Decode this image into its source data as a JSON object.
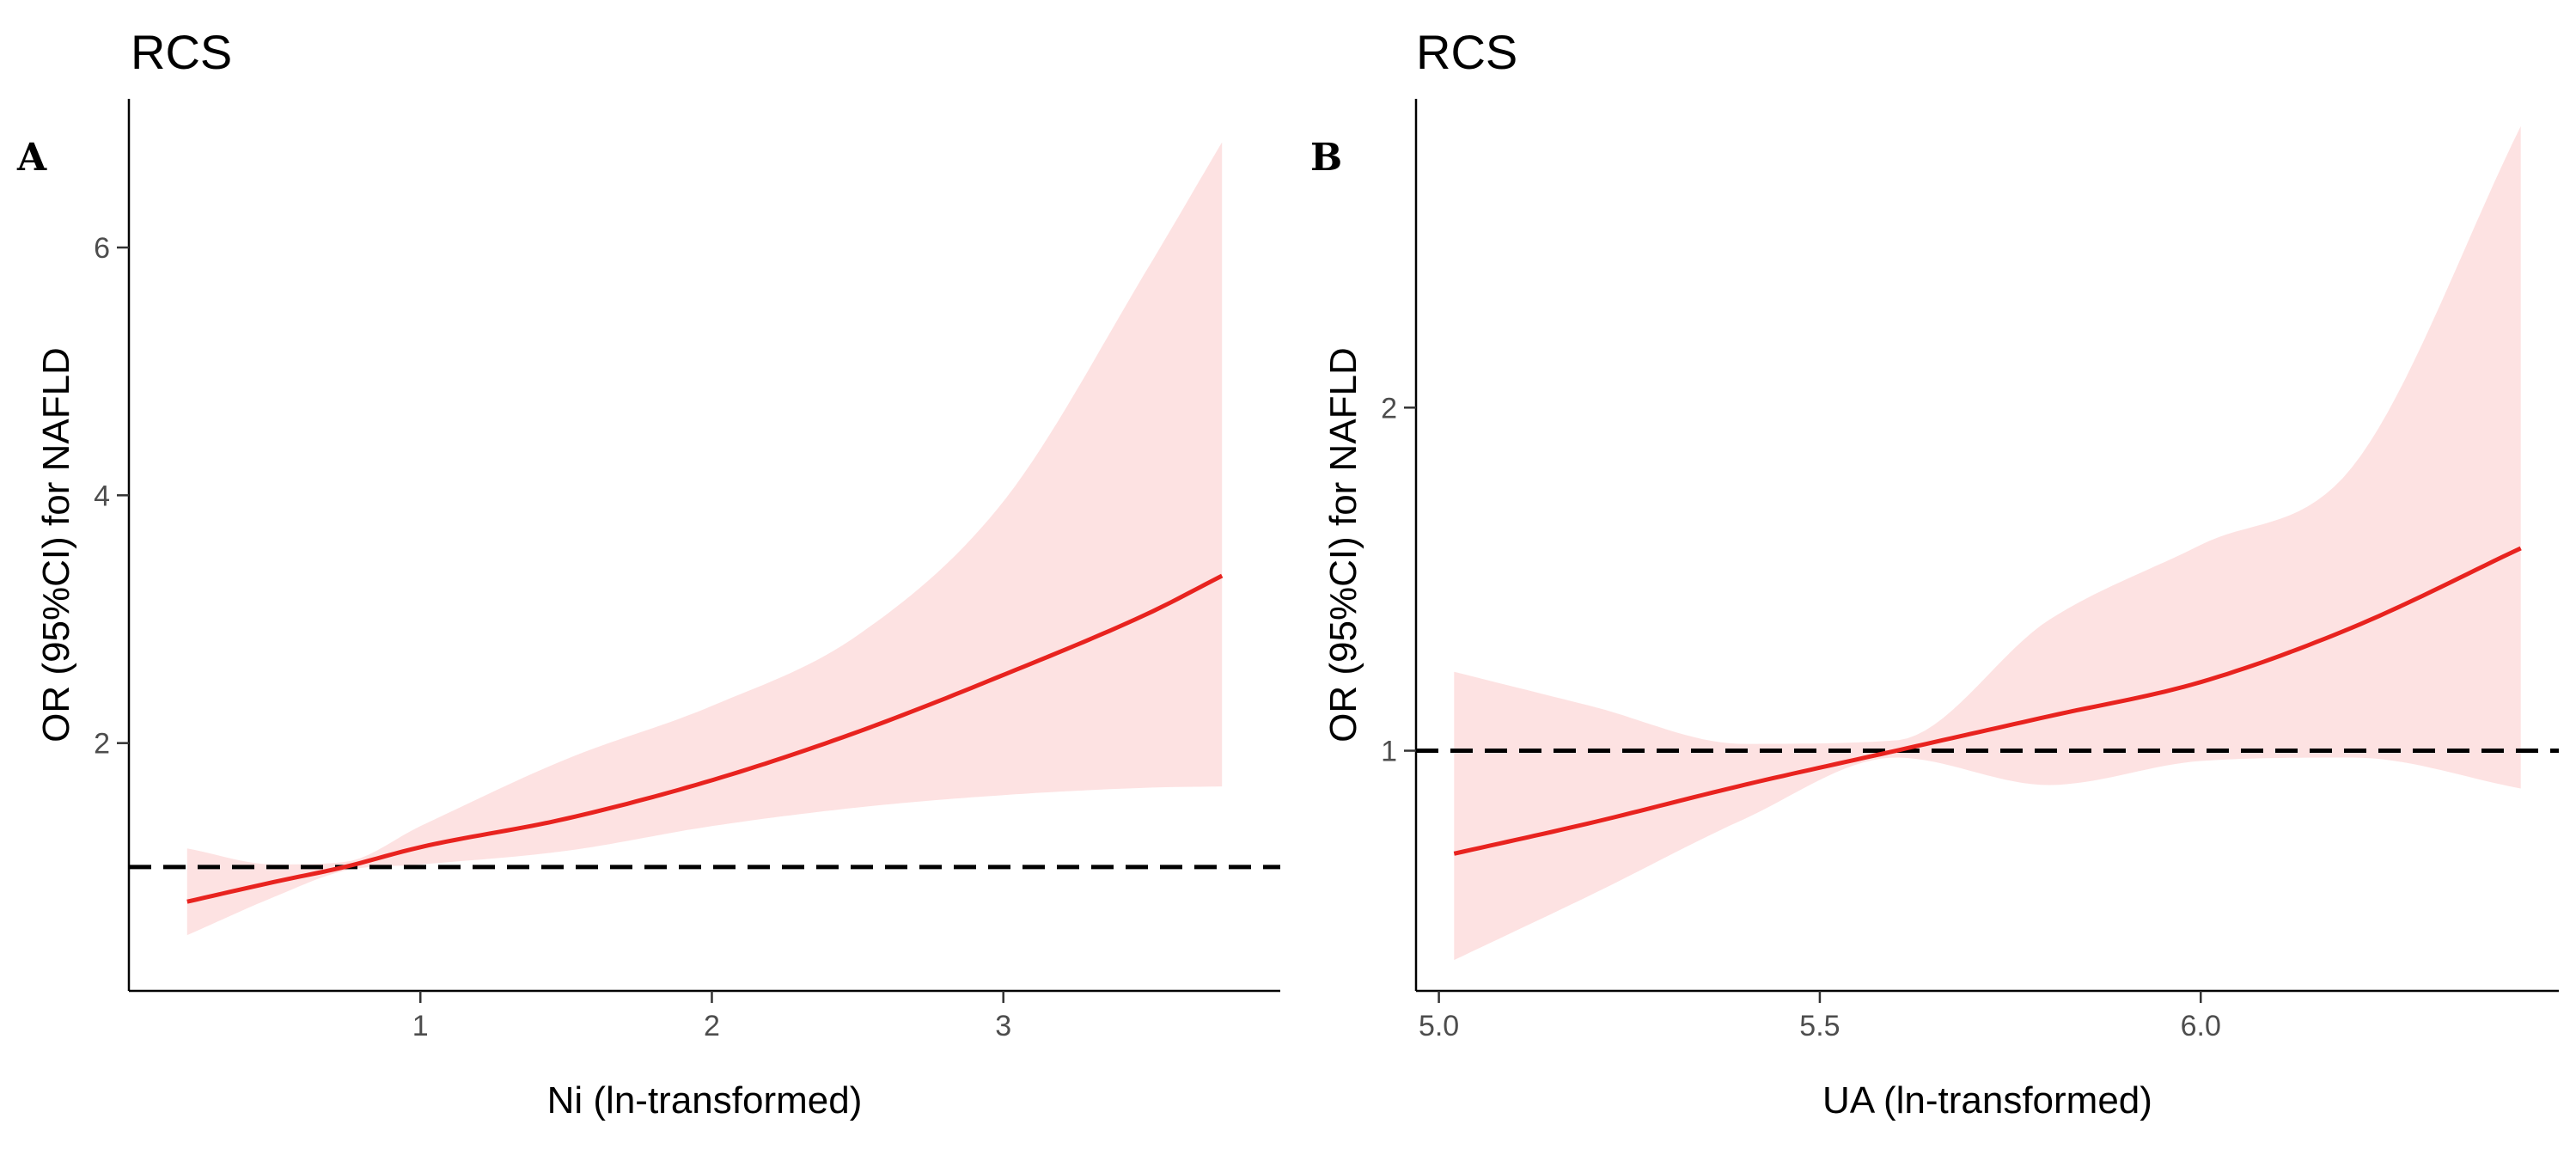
{
  "chart_data": [
    {
      "type": "line",
      "title": "RCS",
      "panel_label": "A",
      "xlabel": "Ni (ln-transformed)",
      "ylabel": "OR (95%CI) for NAFLD",
      "xlim": [
        0.0,
        3.95
      ],
      "ylim": [
        0.0,
        7.2
      ],
      "xticks": [
        1,
        2,
        3
      ],
      "xtick_labels": [
        "1",
        "2",
        "3"
      ],
      "yticks": [
        2,
        4,
        6
      ],
      "ytick_labels": [
        "2",
        "4",
        "6"
      ],
      "reference_line": 1.0,
      "grid": false,
      "legend": "none",
      "series": [
        {
          "x": [
            0.2,
            0.5,
            0.74,
            1.0,
            1.5,
            2.0,
            2.5,
            3.0,
            3.5,
            3.75
          ],
          "values": [
            0.72,
            0.88,
            1.0,
            1.16,
            1.39,
            1.7,
            2.09,
            2.55,
            3.05,
            3.35
          ],
          "lower": [
            0.45,
            0.76,
            0.97,
            1.02,
            1.13,
            1.33,
            1.48,
            1.58,
            1.64,
            1.65
          ],
          "upper": [
            1.15,
            1.02,
            1.04,
            1.33,
            1.87,
            2.3,
            2.87,
            3.95,
            5.85,
            6.85
          ]
        }
      ],
      "colors": {
        "line": "#e8231f",
        "band": "#fde2e2",
        "reference": "#000000"
      }
    },
    {
      "type": "line",
      "title": "RCS",
      "panel_label": "B",
      "xlabel": "UA (ln-transformed)",
      "ylabel": "OR (95%CI) for NAFLD",
      "xlim": [
        4.97,
        6.47
      ],
      "ylim": [
        0.3,
        2.9
      ],
      "xticks": [
        5.0,
        5.5,
        6.0
      ],
      "xtick_labels": [
        "5.0",
        "5.5",
        "6.0"
      ],
      "yticks": [
        1,
        2
      ],
      "ytick_labels": [
        "1",
        "2"
      ],
      "reference_line": 1.0,
      "grid": false,
      "legend": "none",
      "series": [
        {
          "x": [
            5.02,
            5.2,
            5.4,
            5.6,
            5.8,
            6.0,
            6.2,
            6.42
          ],
          "values": [
            0.7,
            0.79,
            0.9,
            1.0,
            1.1,
            1.2,
            1.36,
            1.59
          ],
          "lower": [
            0.39,
            0.58,
            0.8,
            0.98,
            0.9,
            0.97,
            0.98,
            0.89
          ],
          "upper": [
            1.23,
            1.13,
            1.02,
            1.03,
            1.38,
            1.6,
            1.83,
            2.82
          ]
        }
      ],
      "colors": {
        "line": "#e8231f",
        "band": "#fde2e2",
        "reference": "#000000"
      }
    }
  ]
}
